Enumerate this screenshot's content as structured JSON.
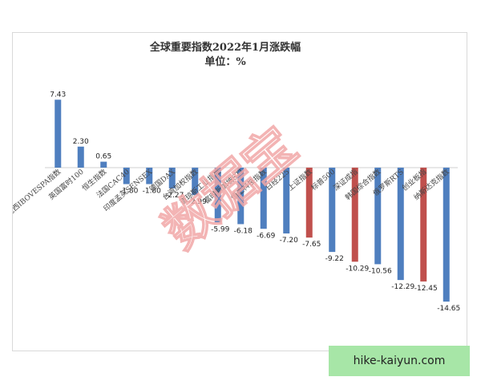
{
  "chart_data": {
    "type": "bar",
    "title": "全球重要指数2022年1月涨跌幅",
    "subtitle": "单位：%",
    "categories": [
      "巴西IBOVESPA指数",
      "英国富时100",
      "恒生指数",
      "法国CAC40",
      "印度孟买SENSEX",
      "德国DAX",
      "台湾加权指数",
      "道琼斯工业指数",
      "富时新加坡STI",
      "恒生科技指数",
      "日经225",
      "上证指数",
      "标普500",
      "深证成指",
      "韩国综合指数",
      "俄罗斯RTS",
      "创业板指",
      "纳斯达克指数"
    ],
    "values": [
      7.43,
      2.3,
      0.65,
      -1.8,
      -1.8,
      -2.27,
      -2.99,
      -5.99,
      -6.18,
      -6.69,
      -7.2,
      -7.65,
      -9.22,
      -10.29,
      -10.56,
      -12.29,
      -12.45,
      -14.65
    ],
    "value_labels": [
      "7.43",
      "2.30",
      "0.65",
      "-1.80",
      "-1.80",
      "-2.27",
      "-2.99",
      "-5.99",
      "-6.18",
      "-6.69",
      "-7.20",
      "-7.65",
      "-9.22",
      "-10.29",
      "-10.56",
      "-12.29",
      "-12.45",
      "-14.65"
    ],
    "highlight_categories": [
      "上证指数",
      "深证成指",
      "创业板指"
    ],
    "ylim": [
      -16,
      10
    ],
    "grid": false,
    "colors": {
      "default": "#4f7fbf",
      "highlight": "#c0504d"
    }
  },
  "watermark": "数据宝",
  "site_badge": "hike-kaiyun.com"
}
